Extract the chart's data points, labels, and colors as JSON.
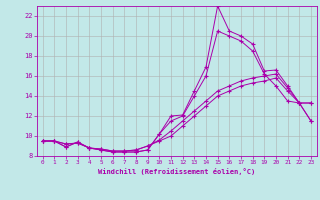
{
  "xlabel": "Windchill (Refroidissement éolien,°C)",
  "xlim": [
    -0.5,
    23.5
  ],
  "ylim": [
    8,
    23
  ],
  "yticks": [
    8,
    10,
    12,
    14,
    16,
    18,
    20,
    22
  ],
  "xticks": [
    0,
    1,
    2,
    3,
    4,
    5,
    6,
    7,
    8,
    9,
    10,
    11,
    12,
    13,
    14,
    15,
    16,
    17,
    18,
    19,
    20,
    21,
    22,
    23
  ],
  "bg_color": "#c2e8e8",
  "grid_color": "#b0b0b0",
  "line_color": "#aa00aa",
  "lines": [
    {
      "x": [
        0,
        1,
        2,
        3,
        4,
        5,
        6,
        7,
        8,
        9,
        10,
        11,
        12,
        13,
        14,
        15,
        16,
        17,
        18,
        19,
        20,
        21,
        22,
        23
      ],
      "y": [
        9.5,
        9.5,
        8.9,
        9.4,
        8.8,
        8.6,
        8.4,
        8.4,
        8.4,
        8.6,
        10.2,
        12.0,
        12.1,
        14.5,
        16.9,
        23.0,
        20.5,
        20.0,
        19.2,
        16.5,
        16.6,
        15.0,
        13.3,
        13.3
      ]
    },
    {
      "x": [
        0,
        1,
        2,
        3,
        4,
        5,
        6,
        7,
        8,
        9,
        10,
        11,
        12,
        13,
        14,
        15,
        16,
        17,
        18,
        19,
        20,
        21,
        22,
        23
      ],
      "y": [
        9.5,
        9.5,
        8.9,
        9.4,
        8.8,
        8.6,
        8.4,
        8.4,
        8.4,
        8.6,
        10.2,
        11.5,
        12.0,
        14.0,
        16.0,
        20.5,
        20.0,
        19.5,
        18.5,
        16.2,
        15.0,
        13.5,
        13.3,
        13.3
      ]
    },
    {
      "x": [
        0,
        1,
        2,
        3,
        4,
        5,
        6,
        7,
        8,
        9,
        10,
        11,
        12,
        13,
        14,
        15,
        16,
        17,
        18,
        19,
        20,
        21,
        22,
        23
      ],
      "y": [
        9.5,
        9.5,
        9.2,
        9.3,
        8.8,
        8.7,
        8.5,
        8.5,
        8.6,
        9.0,
        9.6,
        10.5,
        11.5,
        12.5,
        13.5,
        14.5,
        15.0,
        15.5,
        15.8,
        16.0,
        16.2,
        14.8,
        13.3,
        11.5
      ]
    },
    {
      "x": [
        0,
        1,
        2,
        3,
        4,
        5,
        6,
        7,
        8,
        9,
        10,
        11,
        12,
        13,
        14,
        15,
        16,
        17,
        18,
        19,
        20,
        21,
        22,
        23
      ],
      "y": [
        9.5,
        9.5,
        9.2,
        9.3,
        8.8,
        8.7,
        8.5,
        8.5,
        8.6,
        9.0,
        9.5,
        10.0,
        11.0,
        12.0,
        13.0,
        14.0,
        14.5,
        15.0,
        15.3,
        15.5,
        15.8,
        14.5,
        13.3,
        11.5
      ]
    }
  ]
}
